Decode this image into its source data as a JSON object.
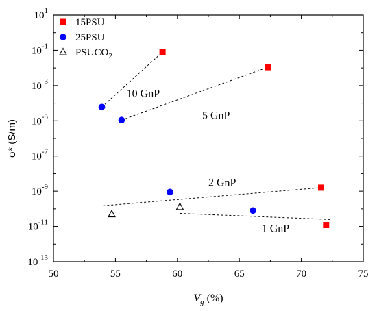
{
  "chart_data": {
    "type": "scatter",
    "xlabel": "V",
    "xlabel_sub": "g",
    "xlabel_unit": " (%)",
    "ylabel": "σ* (S/m)",
    "xlim": [
      50,
      75
    ],
    "ylim_log10": [
      -13,
      1
    ],
    "y_scale": "log",
    "x_ticks": [
      50,
      55,
      60,
      65,
      70,
      75
    ],
    "y_tick_exponents": [
      -13,
      -11,
      -9,
      -7,
      -5,
      -3,
      -1,
      1
    ],
    "grid": false,
    "legend_position": "top-left",
    "series": [
      {
        "name": "15PSU",
        "color": "#ff0000",
        "marker": "square",
        "points": [
          {
            "x": 58.8,
            "y": 0.08
          },
          {
            "x": 67.3,
            "y": 0.011
          },
          {
            "x": 71.6,
            "y": 1.6e-09
          },
          {
            "x": 72.0,
            "y": 1.2e-11
          }
        ]
      },
      {
        "name": "25PSU",
        "color": "#0000ff",
        "marker": "circle",
        "points": [
          {
            "x": 53.9,
            "y": 6e-05
          },
          {
            "x": 55.5,
            "y": 1.1e-05
          },
          {
            "x": 59.4,
            "y": 9e-10
          },
          {
            "x": 66.1,
            "y": 8e-11
          }
        ]
      },
      {
        "name": "PSUCO",
        "name_sub": "2",
        "color": "#000000",
        "marker": "triangle-open",
        "points": [
          {
            "x": 54.7,
            "y": 5e-11
          },
          {
            "x": 60.2,
            "y": 1.3e-10
          }
        ]
      }
    ],
    "trend_lines": [
      {
        "label": "10 GnP",
        "x1": 53.9,
        "y1": 6e-05,
        "x2": 58.8,
        "y2": 0.08
      },
      {
        "label": "5 GnP",
        "x1": 55.5,
        "y1": 1.1e-05,
        "x2": 67.3,
        "y2": 0.011
      },
      {
        "label": "2 GnP",
        "x1": 54.0,
        "y1": 1.5e-10,
        "x2": 71.6,
        "y2": 1.6e-09
      },
      {
        "label": "1 GnP",
        "x1": 60.2,
        "y1": 5.5e-11,
        "x2": 72.3,
        "y2": 2.5e-11
      }
    ],
    "annotations": [
      {
        "text": "10 GnP",
        "x": 55.9,
        "y": 0.00023
      },
      {
        "text": "5 GnP",
        "x": 62.0,
        "y": 1.3e-05
      },
      {
        "text": "2 GnP",
        "x": 62.5,
        "y": 2e-09
      },
      {
        "text": "1 GnP",
        "x": 66.8,
        "y": 5e-12
      }
    ]
  }
}
